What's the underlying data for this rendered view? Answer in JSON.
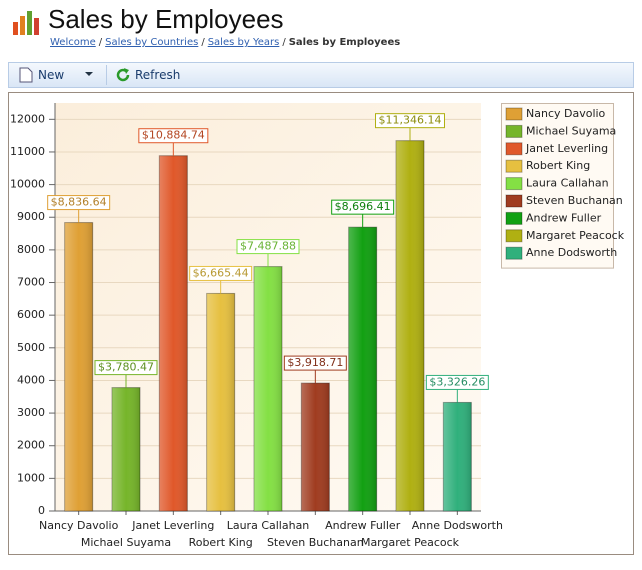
{
  "header": {
    "title": "Sales by Employees"
  },
  "breadcrumb": {
    "items": [
      "Welcome",
      "Sales by Countries",
      "Sales by Years",
      "Sales by Employees"
    ],
    "separator": "/"
  },
  "toolbar": {
    "buttons": [
      "New",
      "Refresh"
    ]
  },
  "chart_data": {
    "type": "bar",
    "categories": [
      "Nancy Davolio",
      "Michael Suyama",
      "Janet Leverling",
      "Robert King",
      "Laura Callahan",
      "Steven Buchanan",
      "Andrew Fuller",
      "Margaret Peacock",
      "Anne Dodsworth"
    ],
    "values": [
      8836.64,
      3780.47,
      10884.74,
      6665.44,
      7487.88,
      3918.71,
      8696.41,
      11346.14,
      3326.26
    ],
    "value_labels": [
      "$8,836.64",
      "$3,780.47",
      "$10,884.74",
      "$6,665.44",
      "$7,487.88",
      "$3,918.71",
      "$8,696.41",
      "$11,346.14",
      "$3,326.26"
    ],
    "colors": [
      "#dfa035",
      "#76b52a",
      "#e0582a",
      "#e6c040",
      "#84e044",
      "#a03c20",
      "#12a012",
      "#b0b012",
      "#30b07c"
    ],
    "ylim": [
      0,
      12500
    ],
    "yticks": [
      0,
      1000,
      2000,
      3000,
      4000,
      5000,
      6000,
      7000,
      8000,
      9000,
      10000,
      11000,
      12000
    ],
    "grid": true,
    "legend": "right"
  }
}
